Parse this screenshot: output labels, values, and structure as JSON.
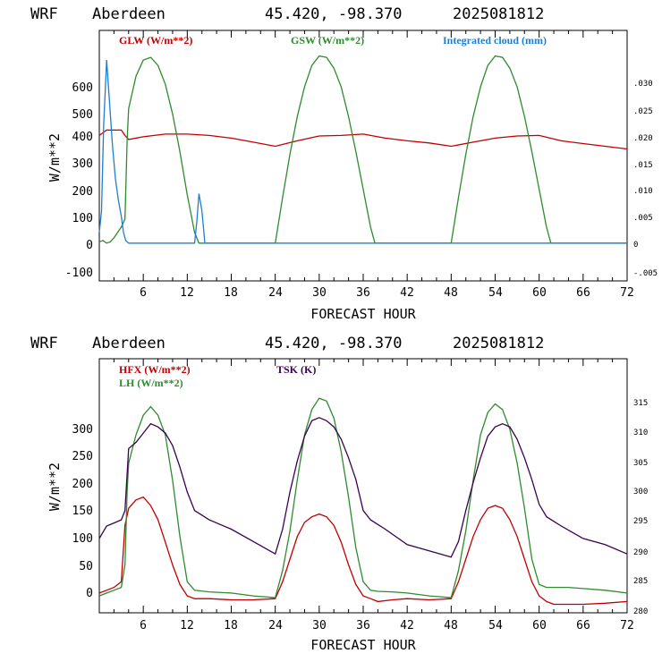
{
  "panels": [
    {
      "header": {
        "model": "WRF",
        "station": "Aberdeen",
        "coords": "45.420, -98.370",
        "run": "2025081812"
      },
      "ylabel": "W/m**2",
      "xlabel": "FORECAST HOUR",
      "left_ticks": [
        "-100",
        "0",
        "100",
        "200",
        "300",
        "400",
        "500",
        "600"
      ],
      "right_ticks": [
        "-.005",
        "0",
        ".005",
        ".010",
        ".015",
        ".020",
        ".025",
        ".030"
      ],
      "x_ticks": [
        "6",
        "12",
        "18",
        "24",
        "30",
        "36",
        "42",
        "48",
        "54",
        "60",
        "66",
        "72"
      ],
      "legend": [
        {
          "label": "GLW (W/m**2)",
          "color": "#c00000"
        },
        {
          "label": "GSW (W/m**2)",
          "color": "#2e8b2e"
        },
        {
          "label": "Integrated cloud (mm)",
          "color": "#1e7fd0"
        }
      ]
    },
    {
      "header": {
        "model": "WRF",
        "station": "Aberdeen",
        "coords": "45.420, -98.370",
        "run": "2025081812"
      },
      "ylabel": "W/m**2",
      "xlabel": "FORECAST HOUR",
      "left_ticks": [
        "0",
        "50",
        "100",
        "150",
        "200",
        "250",
        "300"
      ],
      "right_ticks": [
        "280",
        "285",
        "290",
        "295",
        "300",
        "305",
        "310",
        "315"
      ],
      "x_ticks": [
        "6",
        "12",
        "18",
        "24",
        "30",
        "36",
        "42",
        "48",
        "54",
        "60",
        "66",
        "72"
      ],
      "legend": [
        {
          "label": "HFX (W/m**2)",
          "color": "#c00000"
        },
        {
          "label": "LH  (W/m**2)",
          "color": "#2e8b2e"
        },
        {
          "label": "TSK (K)",
          "color": "#3a0050"
        }
      ]
    }
  ],
  "chart_data": [
    {
      "type": "line",
      "xlabel": "FORECAST HOUR",
      "ylabel": "W/m**2",
      "xlim": [
        0,
        72
      ],
      "ylim": [
        -140,
        790
      ],
      "y2lim": [
        -0.007,
        0.0395
      ],
      "series": [
        {
          "name": "GLW (W/m**2)",
          "axis": "left",
          "color": "#c00000",
          "x": [
            0,
            1,
            3,
            3.5,
            4,
            6,
            9,
            12,
            15,
            18,
            21,
            24,
            27,
            30,
            33,
            36,
            39,
            42,
            45,
            48,
            51,
            54,
            57,
            60,
            63,
            66,
            69,
            72
          ],
          "y": [
            400,
            420,
            420,
            400,
            385,
            395,
            405,
            405,
            400,
            390,
            375,
            360,
            380,
            398,
            400,
            405,
            390,
            380,
            372,
            360,
            375,
            390,
            398,
            400,
            380,
            370,
            360,
            350
          ]
        },
        {
          "name": "GSW (W/m**2)",
          "axis": "left",
          "color": "#2e8b2e",
          "x": [
            0,
            0.5,
            1,
            1.5,
            2,
            2.5,
            3,
            3.5,
            3.8,
            4,
            5,
            6,
            7,
            8,
            9,
            10,
            11,
            12,
            13,
            13.6,
            24,
            25,
            26,
            27,
            28,
            29,
            30,
            31,
            32,
            33,
            34,
            35,
            36,
            37,
            37.6,
            48,
            49,
            50,
            51,
            52,
            53,
            54,
            55,
            56,
            57,
            58,
            59,
            60,
            61,
            61.6,
            72
          ],
          "y": [
            5,
            10,
            0,
            5,
            20,
            40,
            60,
            90,
            380,
            500,
            620,
            680,
            690,
            660,
            590,
            480,
            340,
            180,
            40,
            0,
            0,
            170,
            330,
            470,
            580,
            660,
            695,
            690,
            650,
            580,
            470,
            340,
            200,
            60,
            0,
            0,
            170,
            330,
            470,
            580,
            660,
            695,
            690,
            650,
            580,
            470,
            340,
            200,
            60,
            0,
            0
          ]
        },
        {
          "name": "Integrated cloud (mm)",
          "axis": "right",
          "color": "#1e7fd0",
          "x": [
            0,
            0.3,
            0.6,
            1,
            1.4,
            1.8,
            2.2,
            2.6,
            3,
            3.3,
            3.6,
            4,
            13,
            13.3,
            13.6,
            14,
            14.4,
            72
          ],
          "y": [
            0.002,
            0.006,
            0.022,
            0.034,
            0.026,
            0.018,
            0.012,
            0.008,
            0.005,
            0.002,
            0.0005,
            0,
            0,
            0.004,
            0.0092,
            0.006,
            0,
            0
          ]
        }
      ]
    },
    {
      "type": "line",
      "xlabel": "FORECAST HOUR",
      "ylabel": "W/m**2",
      "xlim": [
        0,
        72
      ],
      "ylim": [
        -35,
        415
      ],
      "y2lim": [
        279.5,
        320.5
      ],
      "series": [
        {
          "name": "HFX (W/m**2)",
          "axis": "left",
          "color": "#c00000",
          "x": [
            0,
            1,
            2,
            3,
            3.5,
            4,
            5,
            6,
            7,
            8,
            9,
            10,
            11,
            12,
            13,
            15,
            18,
            21,
            24,
            25,
            26,
            27,
            28,
            29,
            30,
            31,
            32,
            33,
            34,
            35,
            36,
            37,
            38,
            40,
            42,
            45,
            48,
            49,
            50,
            51,
            52,
            53,
            54,
            55,
            56,
            57,
            58,
            59,
            60,
            61,
            62,
            64,
            66,
            69,
            72
          ],
          "y": [
            0,
            5,
            10,
            20,
            120,
            150,
            165,
            170,
            155,
            130,
            90,
            50,
            15,
            -5,
            -10,
            -10,
            -12,
            -12,
            -10,
            20,
            60,
            100,
            125,
            135,
            140,
            135,
            120,
            90,
            50,
            15,
            -5,
            -10,
            -15,
            -12,
            -10,
            -12,
            -10,
            20,
            60,
            100,
            130,
            150,
            155,
            150,
            130,
            100,
            60,
            20,
            -5,
            -15,
            -20,
            -20,
            -20,
            -18,
            -15
          ]
        },
        {
          "name": "LH  (W/m**2)",
          "axis": "left",
          "color": "#2e8b2e",
          "x": [
            0,
            1,
            2,
            3,
            3.5,
            3.8,
            4,
            5,
            6,
            7,
            8,
            9,
            10,
            11,
            12,
            13,
            15,
            18,
            21,
            24,
            25,
            26,
            27,
            28,
            29,
            30,
            31,
            32,
            33,
            34,
            35,
            36,
            37,
            38,
            40,
            42,
            45,
            48,
            49,
            50,
            51,
            52,
            53,
            54,
            55,
            56,
            57,
            58,
            59,
            60,
            61,
            62,
            64,
            66,
            69,
            72
          ],
          "y": [
            -5,
            0,
            5,
            10,
            50,
            180,
            230,
            280,
            315,
            330,
            315,
            280,
            200,
            100,
            20,
            5,
            2,
            0,
            -5,
            -8,
            40,
            110,
            200,
            280,
            325,
            345,
            340,
            310,
            250,
            170,
            80,
            20,
            5,
            3,
            2,
            0,
            -5,
            -8,
            40,
            110,
            200,
            280,
            320,
            335,
            325,
            290,
            230,
            150,
            60,
            15,
            10,
            10,
            10,
            8,
            5,
            0
          ]
        },
        {
          "name": "TSK (K)",
          "axis": "right",
          "color": "#3a0050",
          "x": [
            0,
            1,
            2,
            3,
            3.5,
            4,
            5,
            6,
            7,
            8,
            9,
            10,
            11,
            12,
            13,
            15,
            18,
            21,
            24,
            25,
            26,
            27,
            28,
            29,
            30,
            31,
            32,
            33,
            34,
            35,
            36,
            37,
            39,
            42,
            45,
            48,
            49,
            50,
            51,
            52,
            53,
            54,
            55,
            56,
            57,
            58,
            59,
            60,
            61,
            63,
            66,
            69,
            72
          ],
          "y": [
            291.5,
            293.5,
            294,
            294.5,
            296,
            306,
            307,
            308.5,
            310,
            309.5,
            308.5,
            306.5,
            303,
            299,
            296,
            294.5,
            293,
            291,
            289,
            293,
            299,
            304,
            308,
            310.5,
            311,
            310.5,
            309.5,
            307.5,
            304.5,
            301,
            296,
            294.5,
            293,
            290.5,
            289.5,
            288.5,
            291,
            296,
            300.5,
            304.5,
            308,
            309.5,
            310,
            309.5,
            307.5,
            304.5,
            301,
            297,
            295,
            293.5,
            291.5,
            290.5,
            289
          ]
        }
      ]
    }
  ]
}
